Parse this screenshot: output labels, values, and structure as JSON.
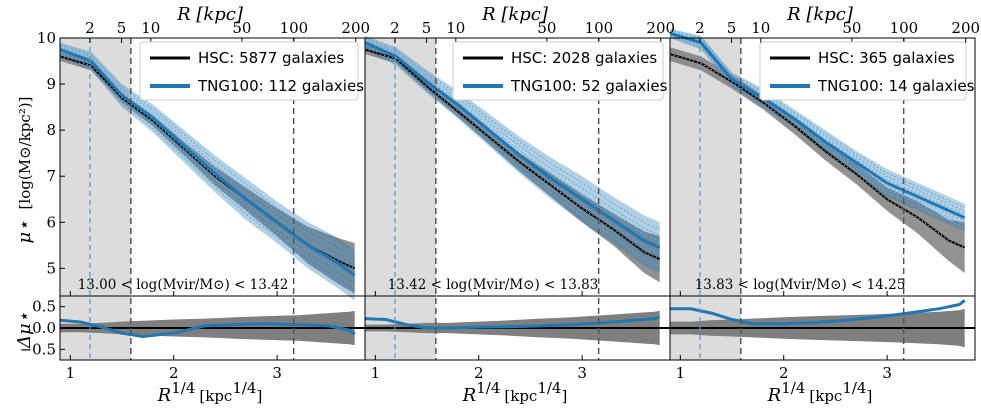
{
  "chart_data": {
    "type": "line",
    "figure": {
      "top_axis_label_panels": [
        "R [kpc]",
        "R [kpc]",
        "R [kpc]"
      ],
      "top_ticks": [
        "2",
        "5",
        "10",
        "50",
        "100",
        "200"
      ],
      "top_tick_values_kpc": [
        2,
        5,
        10,
        50,
        100,
        200
      ],
      "xlabel": "R^1/4 [kpc^1/4]",
      "xlabel_main": "R",
      "xlabel_sup": "1/4",
      "xlabel_unit": "[kpc",
      "xlabel_unit_sup": "1/4",
      "xlabel_close": "]",
      "xticks": [
        "1",
        "2",
        "3"
      ],
      "xtick_values": [
        1,
        2,
        3
      ],
      "xlim": [
        0.9,
        3.85
      ],
      "ylabel_upper": "μ⋆ [log(M⊙/kpc²)]",
      "ylabel_upper_symbol": "μ⋆",
      "ylabel_upper_unit": "[log(M⊙/kpc²)]",
      "ylim_upper": [
        4.4,
        10
      ],
      "yticks_upper": [
        "5",
        "6",
        "7",
        "8",
        "9",
        "10"
      ],
      "ylabel_lower": "Δμ⋆",
      "ylim_lower": [
        -0.75,
        0.75
      ],
      "yticks_lower": [
        "−0.5",
        "0.0",
        "0.5"
      ],
      "ytick_values_lower": [
        -0.5,
        0.0,
        0.5
      ],
      "shaded_x_range": [
        0.9,
        1.585
      ],
      "vlines_dashed_blue": [
        1.19
      ],
      "vlines_dashed_gray": [
        1.585,
        3.16
      ]
    },
    "panels": [
      {
        "legend": {
          "hsc_label": "HSC: 5877 galaxies",
          "tng_label": "TNG100: 112 galaxies"
        },
        "annotation": "13.00 < log(Mvir/M⊙) < 13.42",
        "hsc": {
          "x": [
            0.9,
            1.2,
            1.5,
            1.8,
            2.1,
            2.4,
            2.7,
            3.0,
            3.3,
            3.6,
            3.75
          ],
          "y": [
            9.6,
            9.4,
            8.7,
            8.2,
            7.6,
            7.0,
            6.5,
            6.0,
            5.5,
            5.15,
            5.0
          ]
        },
        "hsc_band_width": [
          0.1,
          0.1,
          0.1,
          0.12,
          0.15,
          0.2,
          0.25,
          0.3,
          0.4,
          0.5,
          0.55
        ],
        "tng": {
          "x": [
            0.9,
            1.2,
            1.5,
            1.8,
            2.1,
            2.4,
            2.7,
            3.0,
            3.3,
            3.6,
            3.75
          ],
          "y": [
            9.75,
            9.5,
            8.75,
            8.25,
            7.65,
            7.05,
            6.5,
            6.0,
            5.5,
            5.1,
            4.85
          ]
        },
        "tng_band_width": [
          0.15,
          0.2,
          0.25,
          0.3,
          0.35,
          0.4,
          0.45,
          0.45,
          0.5,
          0.55,
          0.55
        ],
        "residual": {
          "x": [
            0.9,
            1.1,
            1.3,
            1.5,
            1.7,
            2.0,
            2.3,
            2.6,
            2.9,
            3.2,
            3.5,
            3.7,
            3.75
          ],
          "y": [
            0.18,
            0.14,
            0.02,
            -0.12,
            -0.2,
            -0.12,
            0.05,
            0.08,
            0.1,
            0.08,
            0.05,
            -0.05,
            -0.15
          ]
        },
        "residual_band_width": [
          0.1,
          0.1,
          0.12,
          0.15,
          0.17,
          0.2,
          0.22,
          0.25,
          0.28,
          0.3,
          0.35,
          0.38,
          0.4
        ]
      },
      {
        "legend": {
          "hsc_label": "HSC: 2028 galaxies",
          "tng_label": "TNG100: 52 galaxies"
        },
        "annotation": "13.42 < log(Mvir/M⊙) < 13.83",
        "hsc": {
          "x": [
            0.9,
            1.2,
            1.5,
            1.8,
            2.1,
            2.4,
            2.7,
            3.0,
            3.3,
            3.6,
            3.75
          ],
          "y": [
            9.75,
            9.55,
            8.95,
            8.4,
            7.85,
            7.3,
            6.8,
            6.3,
            5.85,
            5.35,
            5.2
          ]
        },
        "hsc_band_width": [
          0.1,
          0.1,
          0.1,
          0.12,
          0.15,
          0.2,
          0.25,
          0.3,
          0.35,
          0.45,
          0.5
        ],
        "tng": {
          "x": [
            0.9,
            1.2,
            1.5,
            1.8,
            2.1,
            2.4,
            2.7,
            3.0,
            3.3,
            3.6,
            3.75
          ],
          "y": [
            9.9,
            9.6,
            9.05,
            8.55,
            8.0,
            7.45,
            6.95,
            6.5,
            6.05,
            5.6,
            5.45
          ]
        },
        "tng_band_width": [
          0.15,
          0.2,
          0.25,
          0.3,
          0.35,
          0.4,
          0.45,
          0.5,
          0.5,
          0.55,
          0.55
        ],
        "residual": {
          "x": [
            0.9,
            1.1,
            1.3,
            1.5,
            1.7,
            2.0,
            2.3,
            2.6,
            2.9,
            3.2,
            3.5,
            3.7,
            3.75
          ],
          "y": [
            0.22,
            0.2,
            0.08,
            0.0,
            0.0,
            0.02,
            0.03,
            0.05,
            0.08,
            0.12,
            0.18,
            0.22,
            0.25
          ]
        },
        "residual_band_width": [
          0.08,
          0.08,
          0.1,
          0.12,
          0.12,
          0.15,
          0.18,
          0.22,
          0.25,
          0.3,
          0.35,
          0.38,
          0.4
        ]
      },
      {
        "legend": {
          "hsc_label": "HSC: 365 galaxies",
          "tng_label": "TNG100: 14 galaxies"
        },
        "annotation": "13.83 < log(Mvir/M⊙) < 14.25",
        "hsc": {
          "x": [
            0.9,
            1.2,
            1.5,
            1.8,
            2.1,
            2.4,
            2.7,
            3.0,
            3.3,
            3.6,
            3.75
          ],
          "y": [
            9.65,
            9.45,
            9.05,
            8.6,
            8.1,
            7.55,
            7.05,
            6.5,
            6.1,
            5.6,
            5.45
          ]
        },
        "hsc_band_width": [
          0.15,
          0.15,
          0.15,
          0.15,
          0.18,
          0.2,
          0.22,
          0.25,
          0.35,
          0.45,
          0.55
        ],
        "tng": {
          "x": [
            0.9,
            1.2,
            1.5,
            1.8,
            2.1,
            2.4,
            2.7,
            3.0,
            3.3,
            3.6,
            3.75
          ],
          "y": [
            10.1,
            9.9,
            9.1,
            8.7,
            8.25,
            7.75,
            7.3,
            6.85,
            6.55,
            6.25,
            6.1
          ]
        },
        "tng_band_width": [
          0.1,
          0.15,
          0.15,
          0.2,
          0.2,
          0.25,
          0.25,
          0.3,
          0.3,
          0.3,
          0.3
        ],
        "residual": {
          "x": [
            0.9,
            1.1,
            1.3,
            1.5,
            1.7,
            2.0,
            2.3,
            2.6,
            2.9,
            3.2,
            3.5,
            3.7,
            3.75
          ],
          "y": [
            0.45,
            0.45,
            0.35,
            0.2,
            0.1,
            0.1,
            0.13,
            0.18,
            0.25,
            0.35,
            0.45,
            0.55,
            0.65
          ]
        },
        "residual_band_width": [
          0.15,
          0.15,
          0.18,
          0.2,
          0.22,
          0.25,
          0.28,
          0.3,
          0.32,
          0.35,
          0.38,
          0.42,
          0.45
        ]
      }
    ]
  },
  "colors": {
    "hsc": "#000000",
    "tng": "#1f77b4",
    "tng_faint": "#8fbfe0",
    "shade": "#dcdcdc",
    "band": "#7f7f7f",
    "vline_blue": "#5b9bd5",
    "vline_gray": "#555555"
  }
}
